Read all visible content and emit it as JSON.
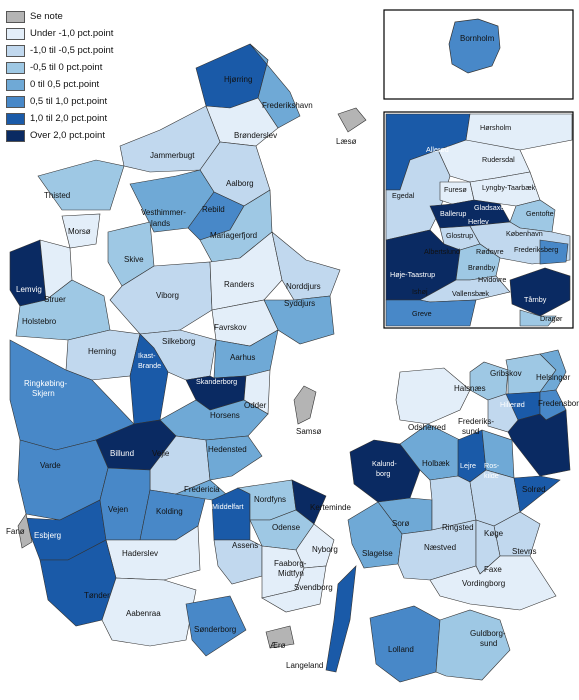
{
  "legend": {
    "items": [
      {
        "label": "Se note",
        "color": "#b4b4b4"
      },
      {
        "label": "Under -1,0 pct.point",
        "color": "#e3eef9"
      },
      {
        "label": "-1,0 til -0,5 pct.point",
        "color": "#c1d8ee"
      },
      {
        "label": "-0,5 til 0 pct.point",
        "color": "#9ec8e4"
      },
      {
        "label": "0 til 0,5 pct.point",
        "color": "#6fa9d6"
      },
      {
        "label": "0,5 til 1,0 pct.point",
        "color": "#4888c8"
      },
      {
        "label": "1,0 til 2,0 pct.point",
        "color": "#1a5aa8"
      },
      {
        "label": "Over 2,0 pct.point",
        "color": "#0a2a62"
      }
    ]
  },
  "municipalities": {
    "hjorring": "Hjørring",
    "frederikshavn": "Frederikshavn",
    "laeso": "Læsø",
    "bronderslev": "Brønderslev",
    "jammerbugt": "Jammerbugt",
    "thisted": "Thisted",
    "aalborg": "Aalborg",
    "vesthimmerlands": "Vesthimmer-\nlands",
    "rebild": "Rebild",
    "mariagerfjord": "Mariagerfjord",
    "morso": "Morsø",
    "skive": "Skive",
    "lemvig": "Lemvig",
    "struer": "Struer",
    "holstebro": "Holstebro",
    "viborg": "Viborg",
    "randers": "Randers",
    "norddjurs": "Norddjurs",
    "syddjurs": "Syddjurs",
    "favrskov": "Favrskov",
    "herning": "Herning",
    "silkeborg": "Silkeborg",
    "ikast_brande": "Ikast-\nBrande",
    "aarhus": "Aarhus",
    "ringkobing": "Ringkøbing-\nSkjern",
    "skanderborg": "Skanderborg",
    "horsens": "Horsens",
    "odder": "Odder",
    "samso": "Samsø",
    "billund": "Billund",
    "vejle": "Vejle",
    "hedensted": "Hedensted",
    "varde": "Varde",
    "esbjerg": "Esbjerg",
    "fano": "Fanø",
    "vejen": "Vejen",
    "kolding": "Kolding",
    "fredericia": "Fredericia",
    "middelfart": "Middelfart",
    "nordfyns": "Nordfyns",
    "kerteminde": "Kerteminde",
    "odense": "Odense",
    "assens": "Assens",
    "nyborg": "Nyborg",
    "haderslev": "Haderslev",
    "faaborg": "Faaborg-\nMidtfyn",
    "svendborg": "Svendborg",
    "tonder": "Tønder",
    "aabenraa": "Aabenraa",
    "sonderborg": "Sønderborg",
    "aero": "Ærø",
    "langeland": "Langeland",
    "odsherred": "Odsherred",
    "kalundborg": "Kalundborg",
    "holbaek": "Holbæk",
    "lejre": "Lejre",
    "roskilde": "Ros-\nkilde",
    "soro": "Sorø",
    "ringsted": "Ringsted",
    "slagelse": "Slagelse",
    "koge": "Køge",
    "stevns": "Stevns",
    "naestved": "Næstved",
    "faxe": "Faxe",
    "vordingborg": "Vordingborg",
    "lolland": "Lolland",
    "guldborgsund": "Guldborg-\nsund",
    "gribskov": "Gribskov",
    "halsnaes": "Halsnæs",
    "helsingor": "Helsingør",
    "hillerod": "Hillerød",
    "fredensborg": "Fredensborg",
    "frederikssund": "Frederiks-\nsund",
    "solrod": "Solrød",
    "greve": "Greve",
    "bornholm": "Bornholm"
  },
  "inset_capital": {
    "horsholm": "Hørsholm",
    "allerod": "Allerød",
    "rudersdal": "Rudersdal",
    "egedal": "Egedal",
    "furesø": "Furesø",
    "lyngby": "Lyngby-Taarbæk",
    "ballerup": "Ballerup",
    "gladsaxe": "Gladsaxe",
    "herlev": "Herlev",
    "gentofte": "Gentofte",
    "glostrup": "Glostrup",
    "kobenhavn": "København",
    "albertslund": "Albertslund",
    "rodovre": "Rødovre",
    "frederiksberg": "Frederiksberg",
    "brondby": "Brøndby",
    "hvidovre": "Hvidovre",
    "hoje_taastrup": "Høje-Taastrup",
    "ishoj": "Ishøj",
    "vallensbaek": "Vallensbæk",
    "taarnby": "Tårnby",
    "greve": "Greve",
    "dragor": "Dragør"
  }
}
